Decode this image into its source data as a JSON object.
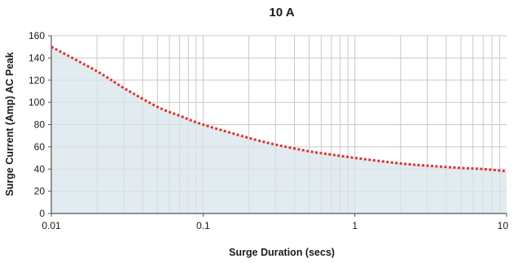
{
  "chart_data": {
    "type": "area",
    "title": "10 A",
    "xlabel": "Surge Duration (secs)",
    "ylabel": "Surge Current (Amp) AC Peak",
    "x_scale": "log",
    "xlim": [
      0.01,
      10
    ],
    "ylim": [
      0,
      160
    ],
    "x_ticks": [
      "0.01",
      "0.1",
      "1",
      "10"
    ],
    "y_ticks": [
      "0",
      "20",
      "40",
      "60",
      "80",
      "100",
      "120",
      "140",
      "160"
    ],
    "grid": true,
    "legend": "none",
    "series": [
      {
        "x": [
          0.01,
          0.02,
          0.03,
          0.05,
          0.07,
          0.1,
          0.2,
          0.3,
          0.5,
          0.7,
          1,
          2,
          3,
          5,
          7,
          10
        ],
        "values": [
          150,
          128,
          113,
          96,
          88,
          80,
          68,
          62,
          56,
          53,
          50,
          45,
          43,
          41,
          40,
          38
        ]
      }
    ],
    "colors": {
      "line": "#dd3333",
      "fill": "#d8e4ea",
      "grid": "#c8c8c8",
      "axis": "#555555"
    }
  }
}
